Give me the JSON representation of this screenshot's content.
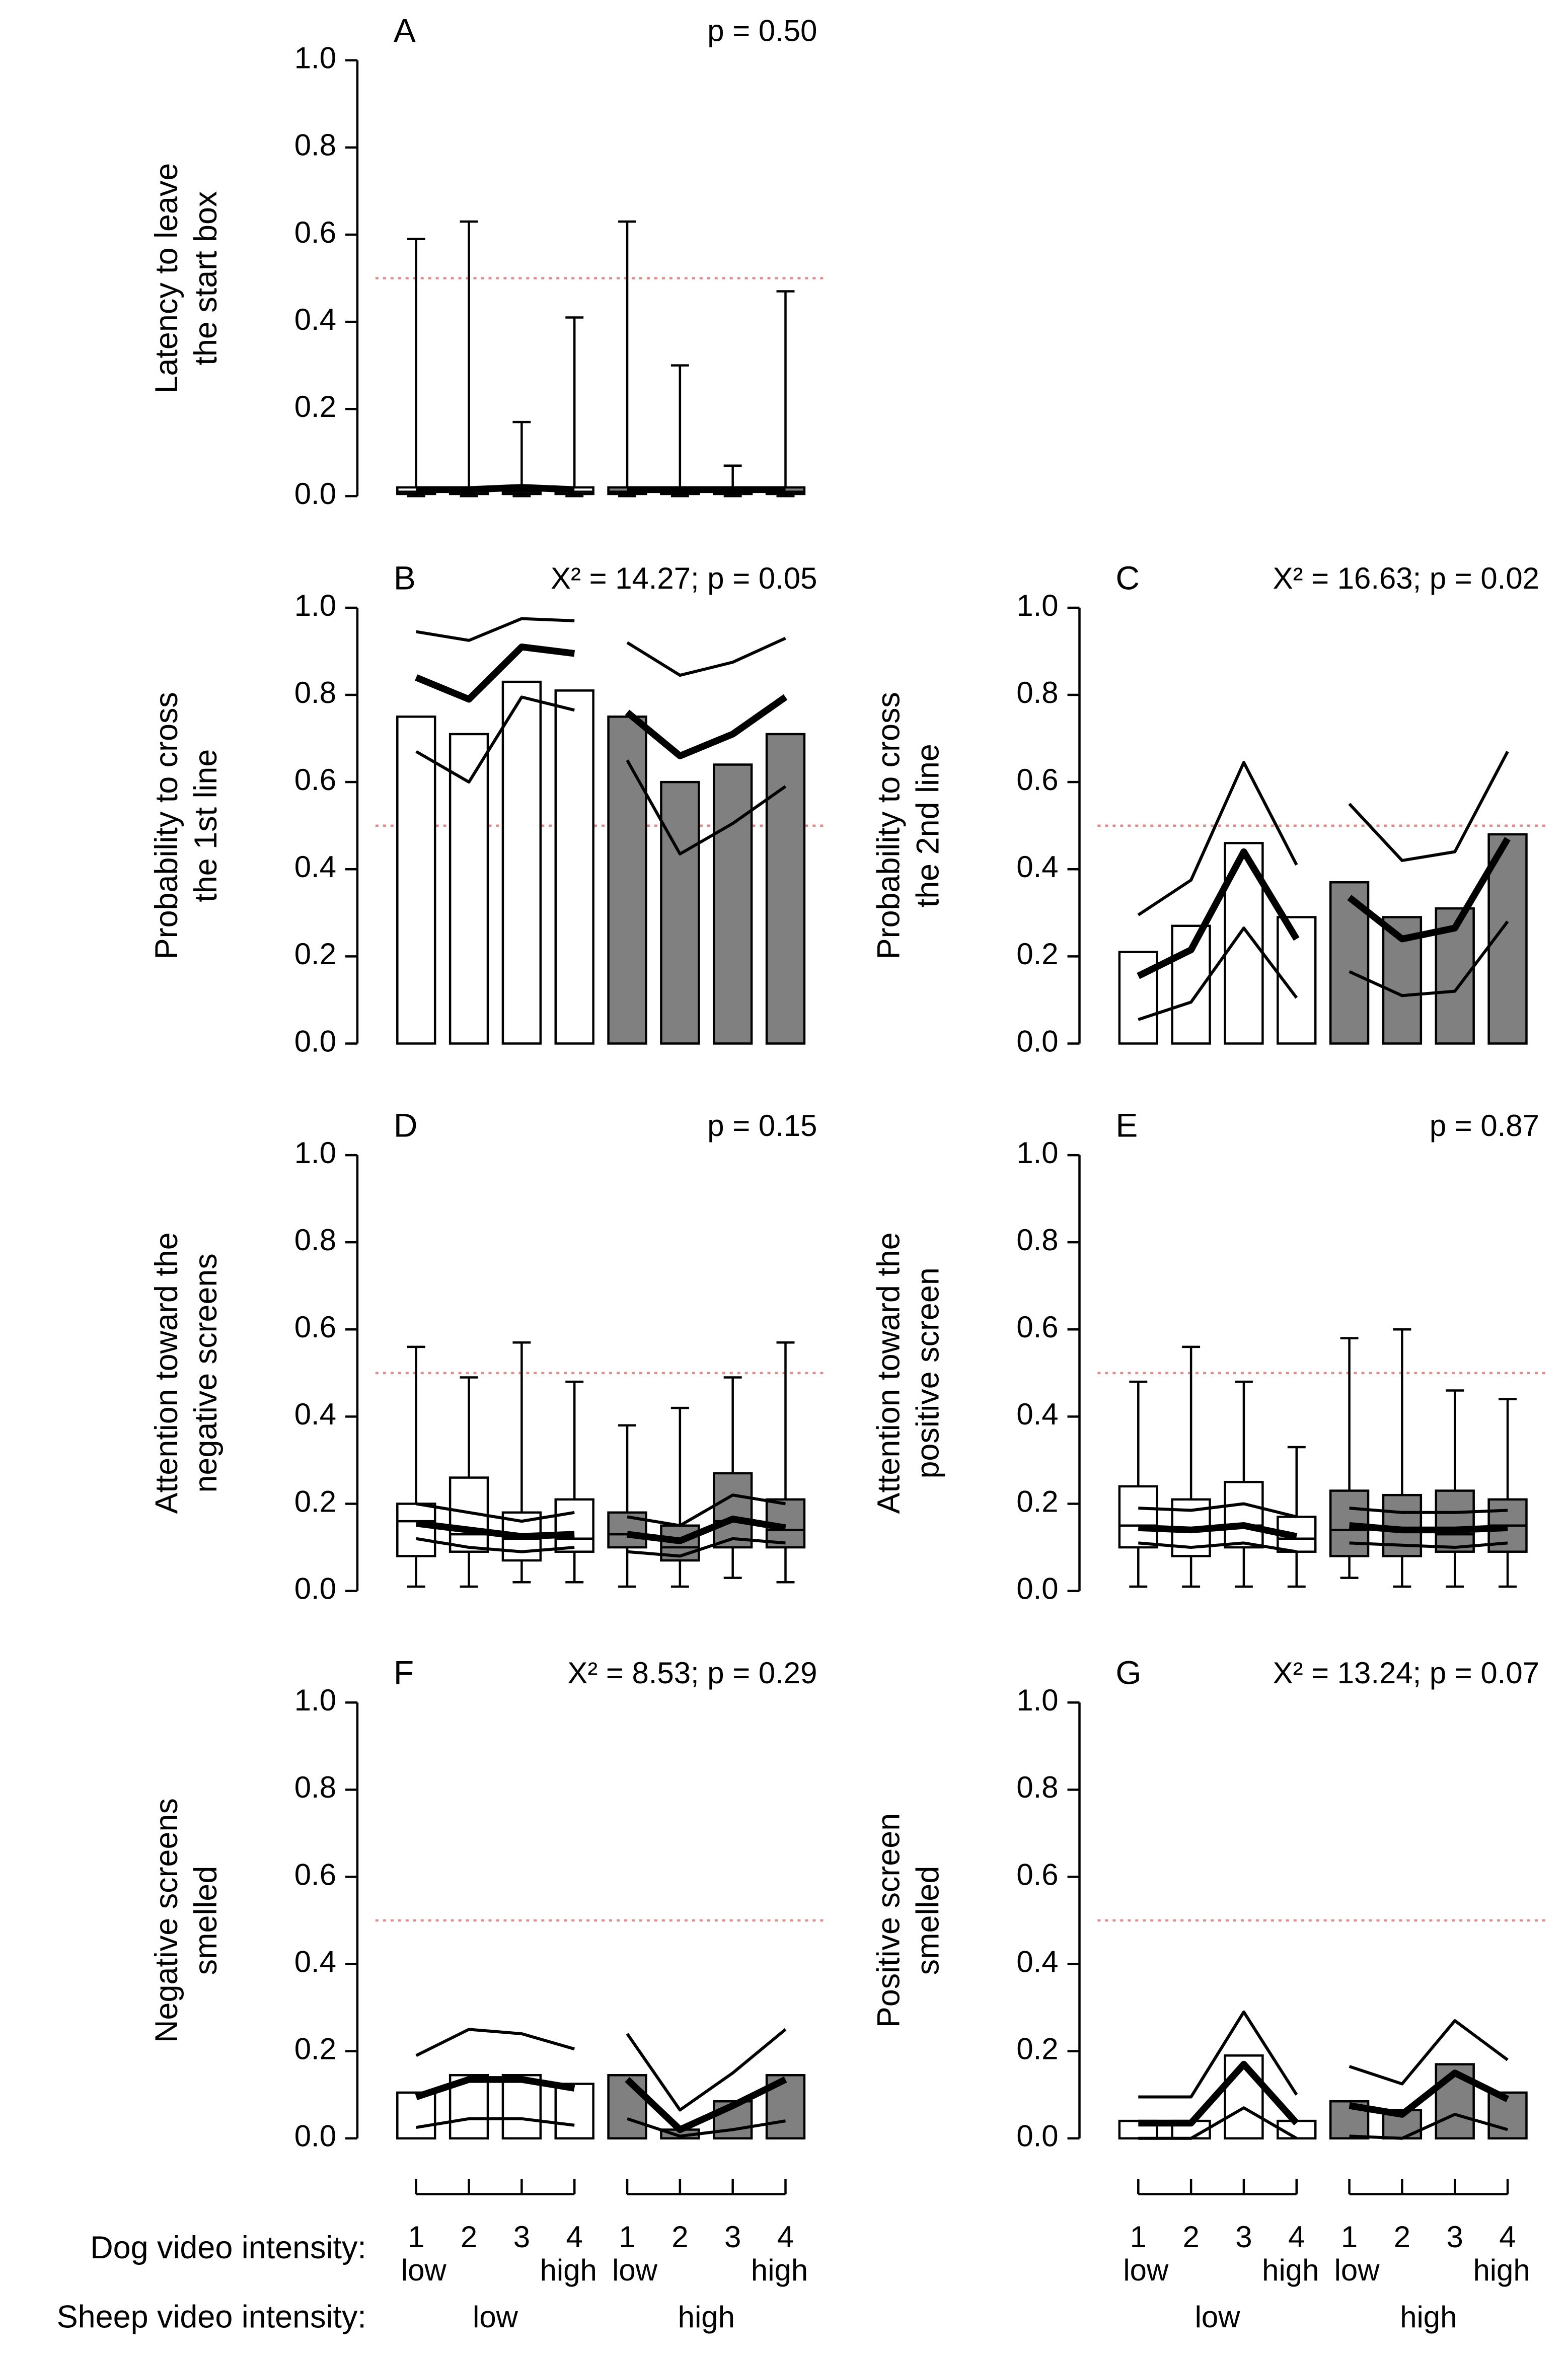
{
  "chart_data": [
    {
      "type": "box",
      "label": "A",
      "stat": "p = 0.50",
      "ylabel": [
        "Latency to leave",
        "the start box"
      ],
      "ylim": [
        0,
        1
      ],
      "yticks": [
        {
          "value": 0,
          "label": "0.0"
        },
        {
          "value": 0.2,
          "label": "0.2"
        },
        {
          "value": 0.4,
          "label": "0.4"
        },
        {
          "value": 0.6,
          "label": "0.6"
        },
        {
          "value": 0.8,
          "label": "0.8"
        },
        {
          "value": 1,
          "label": "1.0"
        }
      ],
      "refline": 0.5,
      "colors": [
        "#ffffff",
        "#808080"
      ],
      "q1": [
        0.005,
        0.005,
        0.005,
        0.005,
        0.005,
        0.005,
        0.005,
        0.005
      ],
      "median": [
        0.01,
        0.01,
        0.01,
        0.01,
        0.01,
        0.01,
        0.01,
        0.01
      ],
      "q3": [
        0.02,
        0.02,
        0.02,
        0.02,
        0.02,
        0.02,
        0.02,
        0.02
      ],
      "whisker_low": [
        0,
        0,
        0,
        0,
        0,
        0,
        0,
        0
      ],
      "whisker_high": [
        0.59,
        0.63,
        0.17,
        0.41,
        0.63,
        0.3,
        0.07,
        0.47
      ],
      "estimate": [
        0.015,
        0.015,
        0.02,
        0.015,
        0.015,
        0.015,
        0.015,
        0.015
      ]
    },
    {
      "type": "bar",
      "label": "B",
      "stat": "X² = 14.27; p = 0.05",
      "ylabel": [
        "Probability to cross",
        "the 1st line"
      ],
      "ylim": [
        0,
        1
      ],
      "yticks": [
        {
          "value": 0,
          "label": "0.0"
        },
        {
          "value": 0.2,
          "label": "0.2"
        },
        {
          "value": 0.4,
          "label": "0.4"
        },
        {
          "value": 0.6,
          "label": "0.6"
        },
        {
          "value": 0.8,
          "label": "0.8"
        },
        {
          "value": 1,
          "label": "1.0"
        }
      ],
      "refline": 0.5,
      "colors": [
        "#ffffff",
        "#808080"
      ],
      "values": [
        0.75,
        0.71,
        0.83,
        0.81,
        0.75,
        0.6,
        0.64,
        0.71
      ],
      "estimate": [
        0.84,
        0.79,
        0.91,
        0.895,
        0.76,
        0.66,
        0.71,
        0.795
      ],
      "upper": [
        0.945,
        0.925,
        0.975,
        0.97,
        0.92,
        0.845,
        0.875,
        0.93
      ],
      "lower": [
        0.67,
        0.6,
        0.795,
        0.765,
        0.65,
        0.435,
        0.505,
        0.59
      ]
    },
    {
      "type": "bar",
      "label": "C",
      "stat": "X² = 16.63; p = 0.02",
      "ylabel": [
        "Probability to cross",
        "the 2nd line"
      ],
      "ylim": [
        0,
        1
      ],
      "yticks": [
        {
          "value": 0,
          "label": "0.0"
        },
        {
          "value": 0.2,
          "label": "0.2"
        },
        {
          "value": 0.4,
          "label": "0.4"
        },
        {
          "value": 0.6,
          "label": "0.6"
        },
        {
          "value": 0.8,
          "label": "0.8"
        },
        {
          "value": 1,
          "label": "1.0"
        }
      ],
      "refline": 0.5,
      "colors": [
        "#ffffff",
        "#808080"
      ],
      "values": [
        0.21,
        0.27,
        0.46,
        0.29,
        0.37,
        0.29,
        0.31,
        0.48
      ],
      "estimate": [
        0.155,
        0.215,
        0.44,
        0.24,
        0.335,
        0.24,
        0.265,
        0.47
      ],
      "upper": [
        0.295,
        0.375,
        0.645,
        0.41,
        0.55,
        0.42,
        0.44,
        0.67
      ],
      "lower": [
        0.055,
        0.095,
        0.265,
        0.105,
        0.165,
        0.11,
        0.12,
        0.28
      ]
    },
    {
      "type": "box",
      "label": "D",
      "stat": "p = 0.15",
      "ylabel": [
        "Attention toward the",
        "negative screens"
      ],
      "ylim": [
        0,
        1
      ],
      "yticks": [
        {
          "value": 0,
          "label": "0.0"
        },
        {
          "value": 0.2,
          "label": "0.2"
        },
        {
          "value": 0.4,
          "label": "0.4"
        },
        {
          "value": 0.6,
          "label": "0.6"
        },
        {
          "value": 0.8,
          "label": "0.8"
        },
        {
          "value": 1,
          "label": "1.0"
        }
      ],
      "refline": 0.5,
      "colors": [
        "#ffffff",
        "#808080"
      ],
      "q1": [
        0.08,
        0.09,
        0.07,
        0.09,
        0.1,
        0.07,
        0.1,
        0.1
      ],
      "median": [
        0.16,
        0.13,
        0.12,
        0.12,
        0.13,
        0.1,
        0.16,
        0.14
      ],
      "q3": [
        0.2,
        0.26,
        0.18,
        0.21,
        0.18,
        0.15,
        0.27,
        0.21
      ],
      "whisker_low": [
        0.01,
        0.01,
        0.02,
        0.02,
        0.01,
        0.01,
        0.03,
        0.02
      ],
      "whisker_high": [
        0.56,
        0.49,
        0.57,
        0.48,
        0.38,
        0.42,
        0.49,
        0.57
      ],
      "estimate": [
        0.155,
        0.14,
        0.125,
        0.13,
        0.13,
        0.115,
        0.165,
        0.145
      ],
      "upper": [
        0.2,
        0.18,
        0.16,
        0.18,
        0.17,
        0.15,
        0.22,
        0.2
      ],
      "lower": [
        0.12,
        0.1,
        0.09,
        0.1,
        0.09,
        0.08,
        0.12,
        0.11
      ]
    },
    {
      "type": "box",
      "label": "E",
      "stat": "p = 0.87",
      "ylabel": [
        "Attention toward the",
        "positive screen"
      ],
      "ylim": [
        0,
        1
      ],
      "yticks": [
        {
          "value": 0,
          "label": "0.0"
        },
        {
          "value": 0.2,
          "label": "0.2"
        },
        {
          "value": 0.4,
          "label": "0.4"
        },
        {
          "value": 0.6,
          "label": "0.6"
        },
        {
          "value": 0.8,
          "label": "0.8"
        },
        {
          "value": 1,
          "label": "1.0"
        }
      ],
      "refline": 0.5,
      "colors": [
        "#ffffff",
        "#808080"
      ],
      "q1": [
        0.1,
        0.08,
        0.1,
        0.09,
        0.08,
        0.08,
        0.09,
        0.09
      ],
      "median": [
        0.15,
        0.14,
        0.15,
        0.12,
        0.14,
        0.14,
        0.13,
        0.15
      ],
      "q3": [
        0.24,
        0.21,
        0.25,
        0.17,
        0.23,
        0.22,
        0.23,
        0.21
      ],
      "whisker_low": [
        0.01,
        0.01,
        0.01,
        0.01,
        0.03,
        0.01,
        0.01,
        0.01
      ],
      "whisker_high": [
        0.48,
        0.56,
        0.48,
        0.33,
        0.58,
        0.6,
        0.46,
        0.44
      ],
      "estimate": [
        0.145,
        0.14,
        0.15,
        0.125,
        0.15,
        0.14,
        0.14,
        0.145
      ],
      "upper": [
        0.19,
        0.185,
        0.2,
        0.17,
        0.19,
        0.18,
        0.18,
        0.185
      ],
      "lower": [
        0.11,
        0.1,
        0.11,
        0.09,
        0.11,
        0.105,
        0.1,
        0.11
      ]
    },
    {
      "type": "bar",
      "label": "F",
      "stat": "X² = 8.53; p = 0.29",
      "ylabel": [
        "Negative screens",
        "smelled"
      ],
      "ylim": [
        0,
        1
      ],
      "yticks": [
        {
          "value": 0,
          "label": "0.0"
        },
        {
          "value": 0.2,
          "label": "0.2"
        },
        {
          "value": 0.4,
          "label": "0.4"
        },
        {
          "value": 0.6,
          "label": "0.6"
        },
        {
          "value": 0.8,
          "label": "0.8"
        },
        {
          "value": 1,
          "label": "1.0"
        }
      ],
      "refline": 0.5,
      "colors": [
        "#ffffff",
        "#808080"
      ],
      "values": [
        0.105,
        0.145,
        0.145,
        0.125,
        0.145,
        0.02,
        0.085,
        0.145
      ],
      "estimate": [
        0.095,
        0.135,
        0.135,
        0.115,
        0.135,
        0.02,
        0.075,
        0.135
      ],
      "upper": [
        0.19,
        0.25,
        0.24,
        0.205,
        0.24,
        0.065,
        0.15,
        0.25
      ],
      "lower": [
        0.025,
        0.045,
        0.045,
        0.03,
        0.045,
        0.005,
        0.02,
        0.04
      ]
    },
    {
      "type": "bar",
      "label": "G",
      "stat": "X² = 13.24; p = 0.07",
      "ylabel": [
        "Positive screen",
        "smelled"
      ],
      "ylim": [
        0,
        1
      ],
      "yticks": [
        {
          "value": 0,
          "label": "0.0"
        },
        {
          "value": 0.2,
          "label": "0.2"
        },
        {
          "value": 0.4,
          "label": "0.4"
        },
        {
          "value": 0.6,
          "label": "0.6"
        },
        {
          "value": 0.8,
          "label": "0.8"
        },
        {
          "value": 1,
          "label": "1.0"
        }
      ],
      "refline": 0.5,
      "colors": [
        "#ffffff",
        "#808080"
      ],
      "values": [
        0.04,
        0.04,
        0.19,
        0.04,
        0.085,
        0.065,
        0.17,
        0.105
      ],
      "estimate": [
        0.035,
        0.035,
        0.17,
        0.035,
        0.075,
        0.055,
        0.15,
        0.09
      ],
      "upper": [
        0.095,
        0.095,
        0.29,
        0.1,
        0.165,
        0.125,
        0.27,
        0.18
      ],
      "lower": [
        0,
        0,
        0.07,
        0,
        0.005,
        0,
        0.055,
        0.02
      ]
    }
  ],
  "x_axis": {
    "dog_label": "Dog video intensity:",
    "dog_levels": [
      "1",
      "2",
      "3",
      "4"
    ],
    "dog_ends": [
      "low",
      "high"
    ],
    "sheep_label": "Sheep video intensity:",
    "sheep_levels": [
      "low",
      "high"
    ]
  }
}
